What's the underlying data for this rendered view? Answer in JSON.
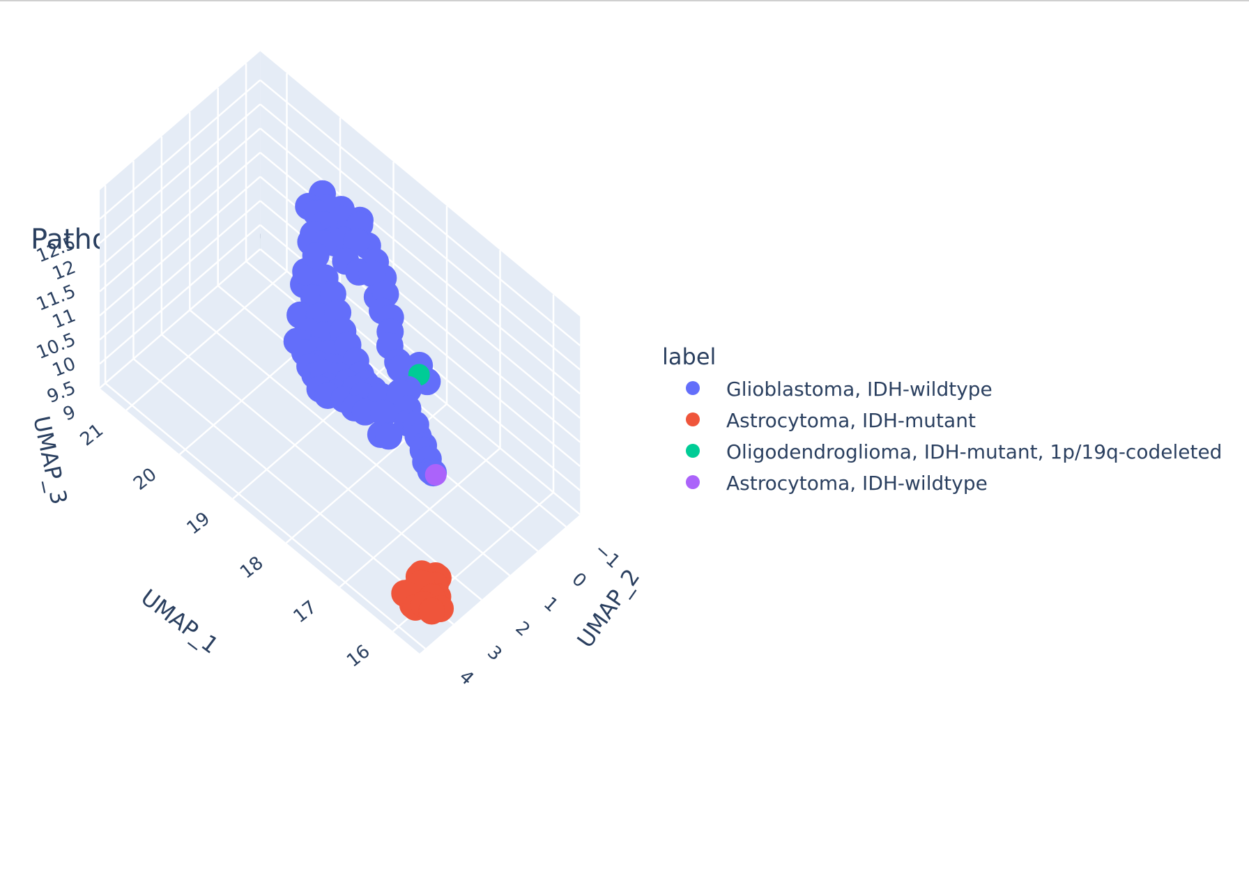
{
  "chart_data": {
    "type": "scatter",
    "title": "Pathologic Diagnosis 3D UMAP",
    "axes": {
      "x": {
        "label": "UMAP_1",
        "ticks": [
          "16",
          "17",
          "18",
          "19",
          "20",
          "21"
        ]
      },
      "y": {
        "label": "UMAP_2",
        "ticks": [
          "4",
          "3",
          "2",
          "1",
          "0",
          "−1"
        ]
      },
      "z": {
        "label": "UMAP_3",
        "ticks": [
          "9",
          "9.5",
          "10",
          "10.5",
          "11",
          "11.5",
          "12",
          "12.5"
        ]
      }
    },
    "legend": {
      "title": "label",
      "placement": "right"
    },
    "series": [
      {
        "name": "Glioblastoma, IDH-wildtype",
        "color": "#636efa",
        "points": [
          [
            19.4,
            0.2,
            12.3
          ],
          [
            19.3,
            -0.2,
            12.3
          ],
          [
            19.1,
            0.1,
            12.2
          ],
          [
            19.5,
            -0.1,
            12.4
          ],
          [
            19.2,
            0.3,
            12.2
          ],
          [
            19.6,
            0.1,
            12.3
          ],
          [
            19.0,
            -0.3,
            12.4
          ],
          [
            19.4,
            -0.4,
            12.3
          ],
          [
            19.7,
            -0.3,
            12.4
          ],
          [
            19.3,
            0.4,
            12.1
          ],
          [
            18.9,
            0.0,
            12.3
          ],
          [
            19.8,
            0.0,
            12.2
          ],
          [
            19.1,
            -0.5,
            12.3
          ],
          [
            19.5,
            0.4,
            12.1
          ],
          [
            18.8,
            -0.2,
            12.2
          ],
          [
            19.3,
            0.0,
            11.9
          ],
          [
            19.6,
            0.3,
            11.8
          ],
          [
            19.0,
            0.2,
            11.9
          ],
          [
            19.4,
            0.5,
            11.8
          ],
          [
            19.2,
            -0.1,
            12.0
          ],
          [
            18.7,
            0.3,
            12.0
          ],
          [
            18.5,
            0.2,
            12.1
          ],
          [
            18.3,
            0.4,
            11.9
          ],
          [
            18.6,
            -0.1,
            12.1
          ],
          [
            18.4,
            0.0,
            12.0
          ],
          [
            18.2,
            0.3,
            12.0
          ],
          [
            18.1,
            0.6,
            11.9
          ],
          [
            18.0,
            0.5,
            11.8
          ],
          [
            17.9,
            0.7,
            11.7
          ],
          [
            17.8,
            0.9,
            11.6
          ],
          [
            17.6,
            1.0,
            11.5
          ],
          [
            17.5,
            1.1,
            11.5
          ],
          [
            17.3,
            1.2,
            11.3
          ],
          [
            17.4,
            1.3,
            11.2
          ],
          [
            17.2,
            1.4,
            11.1
          ],
          [
            17.0,
            1.5,
            11.0
          ],
          [
            17.1,
            1.6,
            11.0
          ],
          [
            16.9,
            1.6,
            10.9
          ],
          [
            17.3,
            0.8,
            11.6
          ],
          [
            17.1,
            0.9,
            11.5
          ],
          [
            19.6,
            -0.2,
            10.8
          ],
          [
            19.4,
            -0.1,
            10.7
          ],
          [
            19.2,
            0.1,
            10.6
          ],
          [
            19.0,
            0.3,
            10.5
          ],
          [
            18.8,
            0.5,
            10.5
          ],
          [
            18.6,
            0.6,
            10.4
          ],
          [
            18.4,
            0.8,
            10.4
          ],
          [
            18.2,
            1.0,
            10.5
          ],
          [
            18.0,
            1.1,
            10.6
          ],
          [
            17.8,
            1.2,
            10.7
          ],
          [
            19.5,
            0.2,
            10.3
          ],
          [
            19.3,
            0.4,
            10.2
          ],
          [
            19.1,
            0.6,
            10.1
          ],
          [
            18.9,
            0.8,
            10.1
          ],
          [
            18.7,
            1.0,
            10.2
          ],
          [
            18.5,
            1.1,
            10.3
          ],
          [
            18.3,
            1.2,
            10.4
          ],
          [
            18.1,
            1.3,
            10.5
          ],
          [
            19.7,
            0.0,
            10.4
          ],
          [
            19.6,
            0.4,
            10.0
          ],
          [
            19.4,
            0.6,
            9.9
          ],
          [
            19.2,
            0.8,
            9.9
          ],
          [
            19.0,
            1.0,
            10.0
          ],
          [
            18.8,
            1.2,
            10.0
          ],
          [
            18.6,
            1.3,
            10.1
          ],
          [
            18.4,
            1.4,
            10.2
          ],
          [
            19.8,
            0.3,
            10.1
          ],
          [
            19.5,
            0.7,
            9.8
          ],
          [
            19.3,
            0.9,
            9.8
          ],
          [
            19.1,
            1.1,
            9.9
          ],
          [
            18.9,
            1.3,
            9.9
          ],
          [
            18.7,
            1.4,
            10.0
          ],
          [
            19.7,
            0.6,
            9.8
          ],
          [
            19.9,
            -0.1,
            10.6
          ],
          [
            19.8,
            0.1,
            10.9
          ],
          [
            20.0,
            -0.2,
            10.3
          ],
          [
            17.9,
            1.2,
            10.4
          ],
          [
            17.7,
            1.3,
            10.5
          ],
          [
            18.2,
            1.4,
            10.2
          ],
          [
            18.0,
            1.4,
            10.3
          ],
          [
            17.6,
            1.6,
            10.3
          ],
          [
            17.4,
            1.7,
            10.5
          ],
          [
            16.8,
            1.6,
            10.8
          ],
          [
            16.7,
            1.8,
            10.9
          ],
          [
            16.6,
            1.9,
            10.8
          ],
          [
            16.5,
            2.0,
            11.0
          ],
          [
            16.4,
            2.1,
            10.9
          ],
          [
            16.3,
            2.2,
            11.0
          ]
        ]
      },
      {
        "name": "Astrocytoma, IDH-mutant",
        "color": "#ef553b",
        "points": [
          [
            16.1,
            2.5,
            9.2
          ],
          [
            16.0,
            2.7,
            9.2
          ],
          [
            16.2,
            2.6,
            9.1
          ],
          [
            15.9,
            2.8,
            9.1
          ],
          [
            16.1,
            2.9,
            9.0
          ],
          [
            16.0,
            3.1,
            9.0
          ],
          [
            15.9,
            3.0,
            9.2
          ],
          [
            16.2,
            3.1,
            9.1
          ],
          [
            16.1,
            3.3,
            9.0
          ],
          [
            16.0,
            3.4,
            9.1
          ],
          [
            15.9,
            3.3,
            9.2
          ],
          [
            16.2,
            2.8,
            9.3
          ],
          [
            16.1,
            3.0,
            9.3
          ],
          [
            16.0,
            2.6,
            9.3
          ],
          [
            16.2,
            3.4,
            9.2
          ],
          [
            15.8,
            3.2,
            9.1
          ],
          [
            15.8,
            2.9,
            9.0
          ],
          [
            16.3,
            2.7,
            9.1
          ]
        ]
      },
      {
        "name": "Oligodendroglioma, IDH-mutant, 1p/19q-codeleted",
        "color": "#00cc96",
        "points": [
          [
            17.2,
            1.0,
            11.6
          ]
        ]
      },
      {
        "name": "Astrocytoma, IDH-wildtype",
        "color": "#ab63fa",
        "points": [
          [
            16.2,
            2.3,
            11.1
          ]
        ]
      }
    ]
  }
}
